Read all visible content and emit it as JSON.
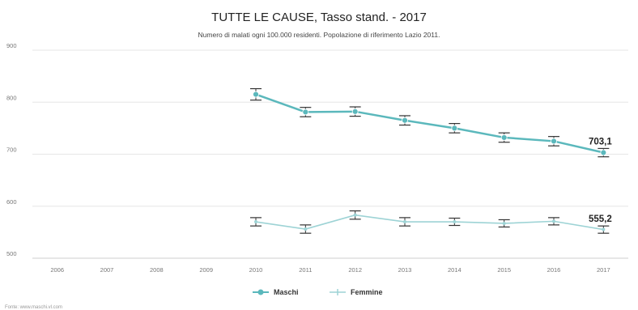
{
  "chart_data": {
    "type": "line",
    "title": "TUTTE LE CAUSE, Tasso stand. - 2017",
    "subtitle": "Numero di malati ogni 100.000 residenti. Popolazione di riferimento Lazio 2011.",
    "x": [
      "2006",
      "2007",
      "2008",
      "2009",
      "2010",
      "2011",
      "2012",
      "2013",
      "2014",
      "2015",
      "2016",
      "2017"
    ],
    "ylim": [
      500,
      900
    ],
    "yticks": [
      "900",
      "800",
      "700",
      "600",
      "500"
    ],
    "grid": true,
    "legend_position": "bottom-center",
    "end_labels": [
      "703,1",
      "555,2"
    ],
    "source": "Fonte: www.maschi.vl.com",
    "series": [
      {
        "name": "Maschi",
        "color": "#5bb8bc",
        "values": [
          null,
          null,
          null,
          null,
          815,
          781,
          782,
          765,
          750,
          732,
          725,
          703.1
        ],
        "lower": [
          null,
          null,
          null,
          null,
          804,
          772,
          773,
          756,
          741,
          723,
          716,
          695
        ],
        "upper": [
          null,
          null,
          null,
          null,
          826,
          790,
          791,
          774,
          759,
          741,
          734,
          711
        ]
      },
      {
        "name": "Femmine",
        "color": "#9dd3d5",
        "values": [
          null,
          null,
          null,
          null,
          570,
          556,
          583,
          570,
          570,
          567,
          571,
          555.2
        ],
        "lower": [
          null,
          null,
          null,
          null,
          562,
          548,
          575,
          562,
          563,
          560,
          564,
          548
        ],
        "upper": [
          null,
          null,
          null,
          null,
          578,
          564,
          591,
          578,
          577,
          574,
          578,
          562
        ]
      }
    ]
  }
}
